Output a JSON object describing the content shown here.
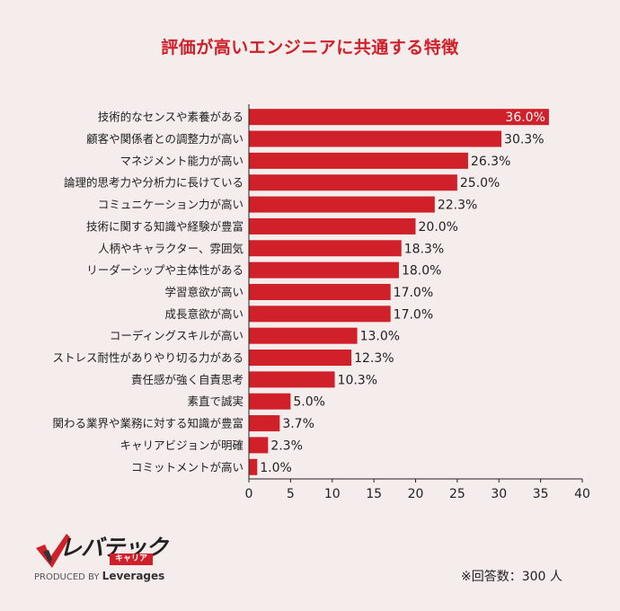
{
  "title": "評価が高いエンジニアに共通する特徴",
  "chart_data": {
    "type": "bar",
    "orientation": "horizontal",
    "title": "評価が高いエンジニアに共通する特徴",
    "categories": [
      "技術的なセンスや素養がある",
      "顧客や関係者との調整力が高い",
      "マネジメント能力が高い",
      "論理的思考力や分析力に長けている",
      "コミュニケーション力が高い",
      "技術に関する知識や経験が豊富",
      "人柄やキャラクター、雰囲気",
      "リーダーシップや主体性がある",
      "学習意欲が高い",
      "成長意欲が高い",
      "コーディングスキルが高い",
      "ストレス耐性がありやり切る力がある",
      "責任感が強く自責思考",
      "素直で誠実",
      "関わる業界や業務に対する知識が豊富",
      "キャリアビジョンが明確",
      "コミットメントが高い"
    ],
    "values": [
      36.0,
      30.3,
      26.3,
      25.0,
      22.3,
      20.0,
      18.3,
      18.0,
      17.0,
      17.0,
      13.0,
      12.3,
      10.3,
      5.0,
      3.7,
      2.3,
      1.0
    ],
    "value_labels": [
      "36.0%",
      "30.3%",
      "26.3%",
      "25.0%",
      "22.3%",
      "20.0%",
      "18.3%",
      "18.0%",
      "17.0%",
      "17.0%",
      "13.0%",
      "12.3%",
      "10.3%",
      "5.0%",
      "3.7%",
      "2.3%",
      "1.0%"
    ],
    "xlim": [
      0,
      40
    ],
    "xticks": [
      0,
      5,
      10,
      15,
      20,
      25,
      30,
      35,
      40
    ],
    "xlabel": "",
    "ylabel": "",
    "bar_color": "#d0202a",
    "grid": false,
    "legend": "none"
  },
  "logo": {
    "brand": "レバテック",
    "sub": "キャリア",
    "produced_by": "PRODUCED BY",
    "company": "Leverages"
  },
  "footnote": "※回答数：300 人"
}
